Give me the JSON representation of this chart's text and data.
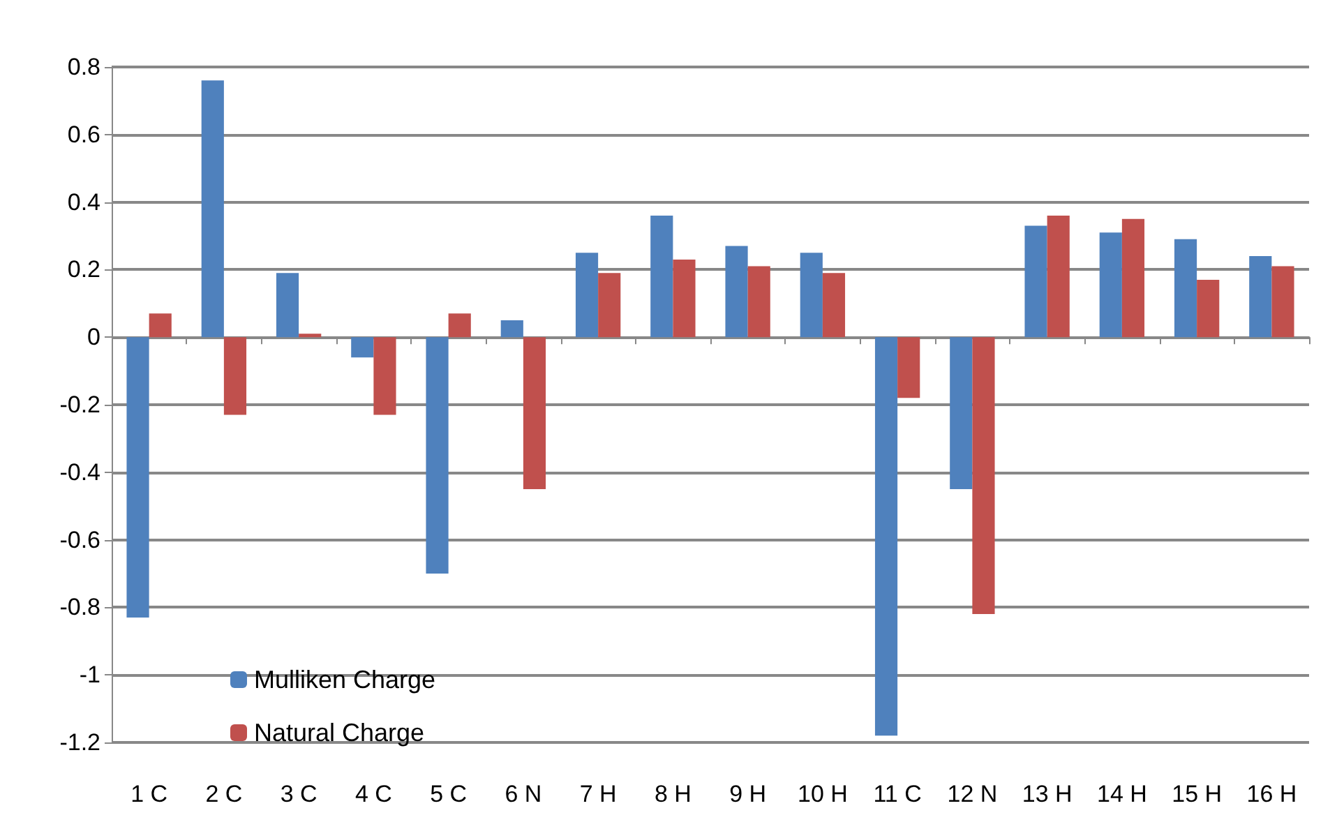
{
  "chart_data": {
    "type": "bar",
    "categories": [
      "1 C",
      "2 C",
      "3 C",
      "4 C",
      "5 C",
      "6 N",
      "7 H",
      "8 H",
      "9 H",
      "10 H",
      "11 C",
      "12 N",
      "13 H",
      "14 H",
      "15 H",
      "16 H"
    ],
    "series": [
      {
        "name": "Mulliken Charge",
        "color": "#4f81bd",
        "values": [
          -0.83,
          0.76,
          0.19,
          -0.06,
          -0.7,
          0.05,
          0.25,
          0.36,
          0.27,
          0.25,
          -1.18,
          -0.45,
          0.33,
          0.31,
          0.29,
          0.24
        ]
      },
      {
        "name": "Natural Charge",
        "color": "#c0504d",
        "values": [
          0.07,
          -0.23,
          0.01,
          -0.23,
          0.07,
          -0.45,
          0.19,
          0.23,
          0.21,
          0.19,
          -0.18,
          -0.82,
          0.36,
          0.35,
          0.17,
          0.21
        ]
      }
    ],
    "ylim": [
      -1.2,
      0.8
    ],
    "yticks": [
      -1.2,
      -1,
      -0.8,
      -0.6,
      -0.4,
      -0.2,
      0,
      0.2,
      0.4,
      0.6,
      0.8
    ],
    "grid": "y",
    "legend": "bottom left"
  }
}
